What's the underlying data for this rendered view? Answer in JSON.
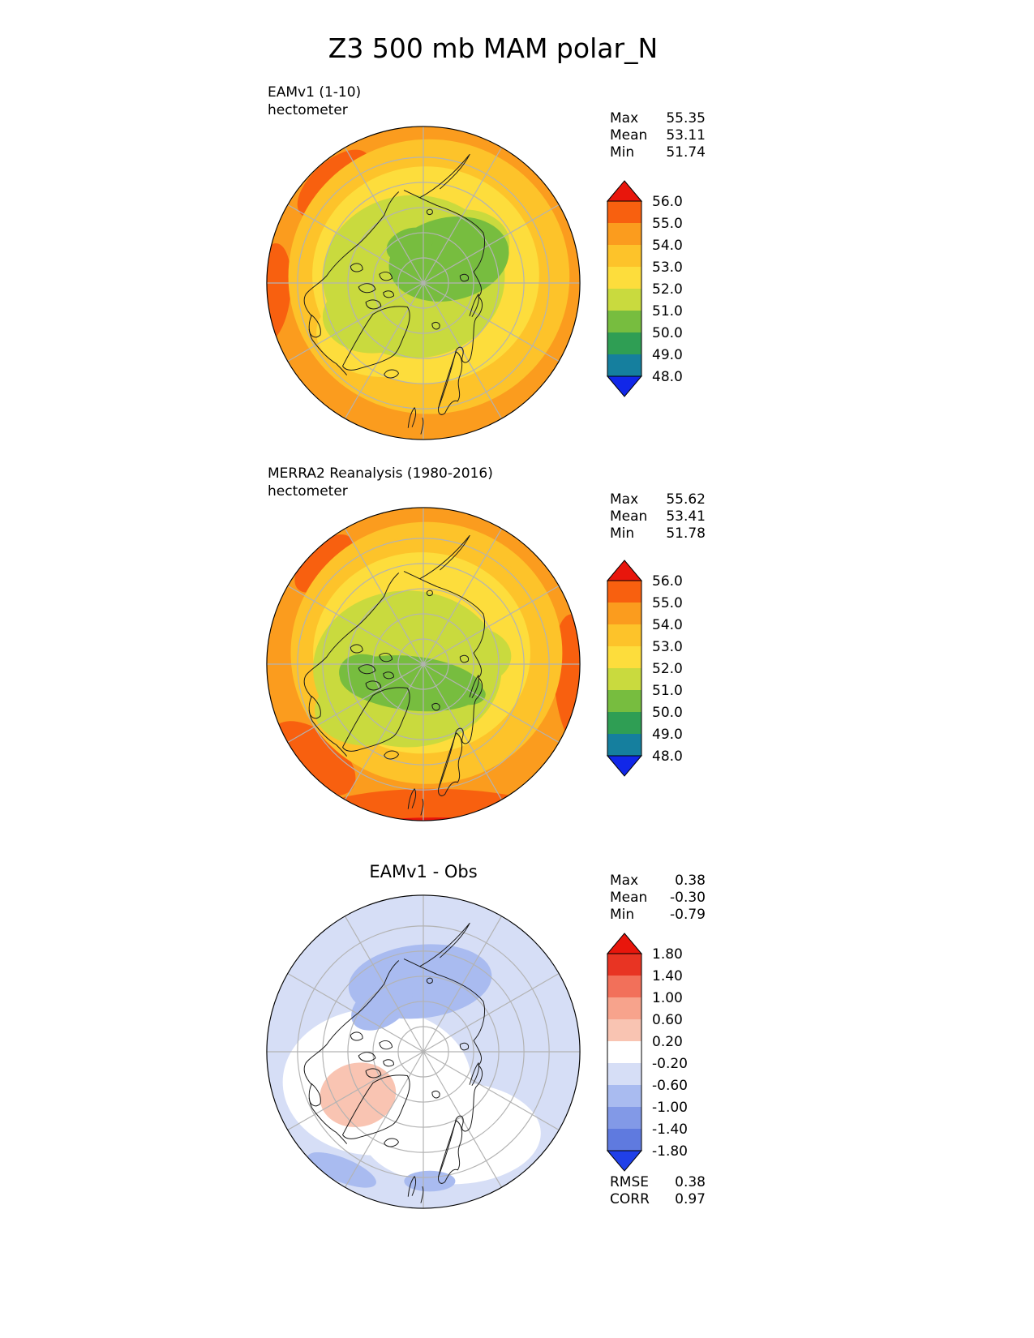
{
  "title": "Z3 500 mb MAM polar_N",
  "palette": {
    "over": "#E8160C",
    "b55": "#F8600F",
    "b54": "#FB9C1E",
    "b53": "#FDC32A",
    "b52": "#FDDD3C",
    "b51": "#C9DA3E",
    "b50": "#77BD3F",
    "b49": "#2F9E54",
    "b48": "#157F9E",
    "under": "#1127E8",
    "dp1": "#F9C4B2",
    "d0": "#FFFFFF",
    "dm1": "#D6DEF6",
    "dm2": "#A9BBF0",
    "graticule": "#B3B3B3",
    "coastline": "#1A1A1A"
  },
  "panels": [
    {
      "label": "EAMv1 (1-10)",
      "units": "hectometer",
      "stats": [
        {
          "label": "Max",
          "value": "55.35"
        },
        {
          "label": "Mean",
          "value": "53.11"
        },
        {
          "label": "Min",
          "value": "51.74"
        }
      ],
      "colorbar": {
        "ticks": [
          "56.0",
          "55.0",
          "54.0",
          "53.0",
          "52.0",
          "51.0",
          "50.0",
          "49.0",
          "48.0"
        ],
        "colors": [
          "#F8600F",
          "#FB9C1E",
          "#FDC32A",
          "#FDDD3C",
          "#C9DA3E",
          "#77BD3F",
          "#2F9E54",
          "#157F9E"
        ],
        "arrow_top": "#E8160C",
        "arrow_bottom": "#1127E8"
      }
    },
    {
      "label": "MERRA2 Reanalysis (1980-2016)",
      "units": "hectometer",
      "stats": [
        {
          "label": "Max",
          "value": "55.62"
        },
        {
          "label": "Mean",
          "value": "53.41"
        },
        {
          "label": "Min",
          "value": "51.78"
        }
      ],
      "colorbar": {
        "ticks": [
          "56.0",
          "55.0",
          "54.0",
          "53.0",
          "52.0",
          "51.0",
          "50.0",
          "49.0",
          "48.0"
        ],
        "colors": [
          "#F8600F",
          "#FB9C1E",
          "#FDC32A",
          "#FDDD3C",
          "#C9DA3E",
          "#77BD3F",
          "#2F9E54",
          "#157F9E"
        ],
        "arrow_top": "#E8160C",
        "arrow_bottom": "#1127E8"
      }
    },
    {
      "label": "EAMv1 - Obs",
      "units": "",
      "stats": [
        {
          "label": "Max",
          "value": "0.38"
        },
        {
          "label": "Mean",
          "value": "-0.30"
        },
        {
          "label": "Min",
          "value": "-0.79"
        }
      ],
      "colorbar": {
        "ticks": [
          "1.80",
          "1.40",
          "1.00",
          "0.60",
          "0.20",
          "-0.20",
          "-0.60",
          "-1.00",
          "-1.40",
          "-1.80"
        ],
        "colors": [
          "#E83423",
          "#F2705A",
          "#F7A38C",
          "#F9C4B2",
          "#FFFFFF",
          "#D6DEF6",
          "#A9BBF0",
          "#8299E7",
          "#5F7ADF"
        ],
        "arrow_top": "#E8160C",
        "arrow_bottom": "#2040E8"
      },
      "footer": [
        {
          "label": "RMSE",
          "value": "0.38"
        },
        {
          "label": "CORR",
          "value": "0.97"
        }
      ]
    }
  ],
  "chart_data": [
    {
      "type": "heatmap",
      "subtype": "filled-contour polar map",
      "title": "EAMv1 (1-10)",
      "units": "hectometer",
      "variable": "Z3 500 mb",
      "season": "MAM",
      "region": "polar_N",
      "levels": [
        48.0,
        49.0,
        50.0,
        51.0,
        52.0,
        53.0,
        54.0,
        55.0,
        56.0
      ],
      "stats": {
        "max": 55.35,
        "mean": 53.11,
        "min": 51.74
      },
      "colorbar_colors_bottom_to_top": [
        "#1127E8",
        "#157F9E",
        "#2F9E54",
        "#77BD3F",
        "#C9DA3E",
        "#FDDD3C",
        "#FDC32A",
        "#FB9C1E",
        "#F8600F",
        "#E8160C"
      ],
      "legend_position": "right"
    },
    {
      "type": "heatmap",
      "subtype": "filled-contour polar map",
      "title": "MERRA2 Reanalysis (1980-2016)",
      "units": "hectometer",
      "variable": "Z3 500 mb",
      "season": "MAM",
      "region": "polar_N",
      "levels": [
        48.0,
        49.0,
        50.0,
        51.0,
        52.0,
        53.0,
        54.0,
        55.0,
        56.0
      ],
      "stats": {
        "max": 55.62,
        "mean": 53.41,
        "min": 51.78
      },
      "colorbar_colors_bottom_to_top": [
        "#1127E8",
        "#157F9E",
        "#2F9E54",
        "#77BD3F",
        "#C9DA3E",
        "#FDDD3C",
        "#FDC32A",
        "#FB9C1E",
        "#F8600F",
        "#E8160C"
      ],
      "legend_position": "right"
    },
    {
      "type": "heatmap",
      "subtype": "difference polar map",
      "title": "EAMv1 - Obs",
      "units": "hectometer",
      "variable": "Z3 500 mb",
      "season": "MAM",
      "region": "polar_N",
      "levels": [
        -1.8,
        -1.4,
        -1.0,
        -0.6,
        -0.2,
        0.2,
        0.6,
        1.0,
        1.4,
        1.8
      ],
      "stats": {
        "max": 0.38,
        "mean": -0.3,
        "min": -0.79,
        "rmse": 0.38,
        "corr": 0.97
      },
      "colorbar_colors_bottom_to_top": [
        "#2040E8",
        "#5F7ADF",
        "#8299E7",
        "#A9BBF0",
        "#D6DEF6",
        "#FFFFFF",
        "#F9C4B2",
        "#F7A38C",
        "#F2705A",
        "#E83423",
        "#E8160C"
      ],
      "legend_position": "right"
    }
  ]
}
